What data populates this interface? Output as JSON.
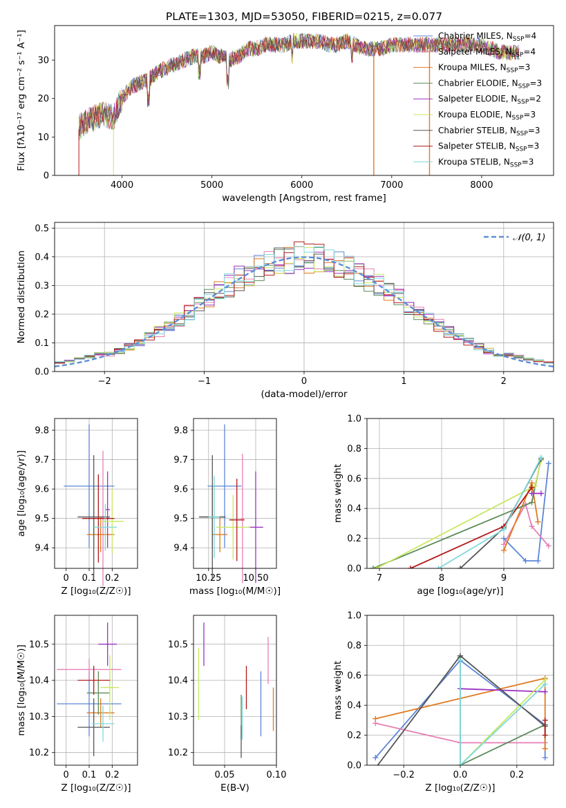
{
  "figure": {
    "title": "PLATE=1303, MJD=53050, FIBERID=0215, z=0.077"
  },
  "colors": {
    "chabrier_miles": "#5b86d6",
    "salpeter_miles": "#e67fb4",
    "kroupa_miles": "#e07a20",
    "chabrier_elodie": "#5a8a5a",
    "salpeter_elodie": "#9b30c0",
    "kroupa_elodie": "#c8e860",
    "chabrier_stelib": "#555555",
    "salpeter_stelib": "#b01818",
    "kroupa_stelib": "#80d8dc",
    "gauss": "#5b8fd6"
  },
  "chart_data": [
    {
      "id": "spectrum",
      "type": "line",
      "xlabel": "wavelength [Angstrom, rest frame]",
      "ylabel": "Flux [fλ10⁻¹⁷ erg cm⁻² s⁻¹ A⁻¹]",
      "xlim": [
        3250,
        8800
      ],
      "ylim": [
        0,
        39
      ],
      "xticks": [
        4000,
        5000,
        6000,
        7000,
        8000
      ],
      "yticks": [
        0,
        10,
        20,
        30
      ],
      "grid": false,
      "legend_position": "right",
      "continuum": {
        "x": [
          3500,
          3600,
          3700,
          3800,
          3900,
          4000,
          4100,
          4200,
          4300,
          4400,
          4500,
          4600,
          4700,
          4800,
          4900,
          5000,
          5100,
          5200,
          5300,
          5400,
          5500,
          5600,
          5700,
          5800,
          5900,
          6000,
          6100,
          6200,
          6300,
          6400,
          6500,
          6600,
          6700,
          6800,
          6900,
          7000,
          7100,
          7200,
          7300,
          7400,
          7500,
          7600,
          7700,
          7800,
          7900,
          8000,
          8100,
          8200,
          8300,
          8400
        ],
        "y": [
          12,
          14,
          15,
          16,
          15,
          20,
          23,
          24,
          25,
          27,
          28,
          29,
          30,
          31,
          31,
          32,
          31,
          30,
          31,
          33,
          33,
          34,
          34,
          34,
          35,
          35,
          35,
          35,
          34,
          34,
          35,
          34,
          33,
          33,
          33,
          34,
          34,
          34,
          34,
          34,
          34,
          34,
          34,
          34,
          34,
          34,
          33,
          32,
          32,
          32
        ]
      },
      "series": [
        {
          "name": "Chabrier MILES, N_SSP=4",
          "color_key": "chabrier_miles"
        },
        {
          "name": "Salpeter MILES, N_SSP=4",
          "color_key": "salpeter_miles"
        },
        {
          "name": "Kroupa MILES, N_SSP=3",
          "color_key": "kroupa_miles"
        },
        {
          "name": "Chabrier ELODIE, N_SSP=3",
          "color_key": "chabrier_elodie"
        },
        {
          "name": "Salpeter ELODIE, N_SSP=2",
          "color_key": "salpeter_elodie"
        },
        {
          "name": "Kroupa ELODIE, N_SSP=3",
          "color_key": "kroupa_elodie"
        },
        {
          "name": "Chabrier STELIB, N_SSP=3",
          "color_key": "chabrier_stelib"
        },
        {
          "name": "Salpeter STELIB, N_SSP=3",
          "color_key": "salpeter_stelib"
        },
        {
          "name": "Kroupa STELIB, N_SSP=3",
          "color_key": "kroupa_stelib"
        }
      ]
    },
    {
      "id": "residuals",
      "type": "histogram",
      "xlabel": "(data-model)/error",
      "ylabel": "Normed distribution",
      "xlim": [
        -2.5,
        2.5
      ],
      "ylim": [
        0,
        0.52
      ],
      "xticks": [
        -2,
        -1,
        0,
        1,
        2
      ],
      "xtick_labels": [
        "−2",
        "−1",
        "0",
        "1",
        "2"
      ],
      "yticks": [
        0.0,
        0.1,
        0.2,
        0.3,
        0.4,
        0.5
      ],
      "ytick_labels": [
        "0.0",
        "0.1",
        "0.2",
        "0.3",
        "0.4",
        "0.5"
      ],
      "grid": true,
      "legend_position": "top-right",
      "legend_label": "𝒩(0, 1)",
      "bin_width": 0.1
    },
    {
      "id": "age_vs_Z",
      "type": "errorbar",
      "xlabel": "Z [log₁₀(Z/Z☉)]",
      "ylabel": "age  [log₁₀(age/yr)]",
      "xlim": [
        -0.05,
        0.31
      ],
      "ylim": [
        9.33,
        9.84
      ],
      "xticks": [
        0.0,
        0.1,
        0.2
      ],
      "yticks": [
        9.4,
        9.5,
        9.6,
        9.7,
        9.8
      ],
      "grid": true,
      "points": [
        {
          "key": "chabrier_miles",
          "x": 0.1,
          "xerr": 0.11,
          "y": 9.61,
          "yerr": 0.21
        },
        {
          "key": "salpeter_miles",
          "x": 0.16,
          "xerr": 0.04,
          "y": 9.5,
          "yerr": 0.23
        },
        {
          "key": "kroupa_miles",
          "x": 0.15,
          "xerr": 0.06,
          "y": 9.445,
          "yerr": 0.06
        },
        {
          "key": "chabrier_elodie",
          "x": 0.12,
          "xerr": 0.05,
          "y": 9.5,
          "yerr": 0.1
        },
        {
          "key": "salpeter_elodie",
          "x": 0.18,
          "xerr": 0.01,
          "y": 9.53,
          "yerr": 0.13
        },
        {
          "key": "kroupa_elodie",
          "x": 0.2,
          "xerr": 0.05,
          "y": 9.49,
          "yerr": 0.11
        },
        {
          "key": "chabrier_stelib",
          "x": 0.12,
          "xerr": 0.07,
          "y": 9.505,
          "yerr": 0.21
        },
        {
          "key": "salpeter_stelib",
          "x": 0.14,
          "xerr": 0.07,
          "y": 9.5,
          "yerr": 0.15
        },
        {
          "key": "kroupa_stelib",
          "x": 0.17,
          "xerr": 0.05,
          "y": 9.47,
          "yerr": 0.08
        }
      ]
    },
    {
      "id": "age_vs_mass",
      "type": "errorbar",
      "xlabel": "mass [log₁₀(M/M☉)]",
      "ylabel": "",
      "xlim": [
        10.17,
        10.61
      ],
      "ylim": [
        9.33,
        9.84
      ],
      "xticks": [
        10.25,
        10.5
      ],
      "xtick_labels": [
        "10.25",
        "10.50"
      ],
      "yticks": [
        9.4,
        9.5,
        9.6,
        9.7,
        9.8
      ],
      "grid": true,
      "points": [
        {
          "key": "chabrier_miles",
          "x": 10.335,
          "xerr": 0.09,
          "y": 9.61,
          "yerr": 0.21
        },
        {
          "key": "salpeter_miles",
          "x": 10.43,
          "xerr": 0.01,
          "y": 9.5,
          "yerr": 0.22
        },
        {
          "key": "kroupa_miles",
          "x": 10.31,
          "xerr": 0.04,
          "y": 9.445,
          "yerr": 0.06
        },
        {
          "key": "chabrier_elodie",
          "x": 10.27,
          "xerr": 0.07,
          "y": 9.505,
          "yerr": 0.1
        },
        {
          "key": "salpeter_elodie",
          "x": 10.5,
          "xerr": 0.04,
          "y": 9.47,
          "yerr": 0.19
        },
        {
          "key": "kroupa_elodie",
          "x": 10.38,
          "xerr": 0.09,
          "y": 9.47,
          "yerr": 0.11
        },
        {
          "key": "chabrier_stelib",
          "x": 10.27,
          "xerr": 0.07,
          "y": 9.505,
          "yerr": 0.21
        },
        {
          "key": "salpeter_stelib",
          "x": 10.4,
          "xerr": 0.04,
          "y": 9.495,
          "yerr": 0.14
        },
        {
          "key": "kroupa_stelib",
          "x": 10.28,
          "xerr": 0.03,
          "y": 9.505,
          "yerr": 0.14
        }
      ]
    },
    {
      "id": "weight_vs_age",
      "type": "line",
      "xlabel": "age  [log₁₀(age/yr)]",
      "ylabel": "mass weight",
      "xlim": [
        6.8,
        9.8
      ],
      "ylim": [
        0,
        1
      ],
      "xticks": [
        7,
        8,
        9
      ],
      "yticks": [
        0.0,
        0.2,
        0.4,
        0.6,
        0.8,
        1.0
      ],
      "ytick_labels": [
        "0.0",
        "0.2",
        "0.4",
        "0.6",
        "0.8",
        "1.0"
      ],
      "grid": true,
      "series": [
        {
          "key": "chabrier_miles",
          "x": [
            9.0,
            9.35,
            9.55,
            9.72
          ],
          "y": [
            0.2,
            0.05,
            0.05,
            0.7
          ]
        },
        {
          "key": "salpeter_miles",
          "x": [
            9.0,
            9.35,
            9.45,
            9.72
          ],
          "y": [
            0.16,
            0.43,
            0.28,
            0.15
          ]
        },
        {
          "key": "kroupa_miles",
          "x": [
            9.0,
            9.45,
            9.55
          ],
          "y": [
            0.12,
            0.57,
            0.31
          ]
        },
        {
          "key": "chabrier_elodie",
          "x": [
            6.9,
            9.45,
            9.6
          ],
          "y": [
            0.0,
            0.44,
            0.73
          ]
        },
        {
          "key": "salpeter_elodie",
          "x": [
            9.45,
            9.6
          ],
          "y": [
            0.5,
            0.5
          ]
        },
        {
          "key": "kroupa_elodie",
          "x": [
            6.95,
            9.5,
            9.6
          ],
          "y": [
            0.0,
            0.55,
            0.72
          ]
        },
        {
          "key": "chabrier_stelib",
          "x": [
            8.3,
            9.0,
            9.6
          ],
          "y": [
            0.0,
            0.27,
            0.73
          ]
        },
        {
          "key": "salpeter_stelib",
          "x": [
            7.5,
            9.0,
            9.45
          ],
          "y": [
            0.0,
            0.28,
            0.54
          ]
        },
        {
          "key": "kroupa_stelib",
          "x": [
            7.95,
            9.0,
            9.6
          ],
          "y": [
            0.0,
            0.26,
            0.74
          ]
        }
      ]
    },
    {
      "id": "mass_vs_Z",
      "type": "errorbar",
      "xlabel": "Z [log₁₀(Z/Z☉)]",
      "ylabel": "mass [log₁₀(M/M☉)]",
      "xlim": [
        -0.05,
        0.31
      ],
      "ylim": [
        10.165,
        10.58
      ],
      "xticks": [
        0.0,
        0.1,
        0.2
      ],
      "yticks": [
        10.2,
        10.3,
        10.4,
        10.5
      ],
      "grid": true,
      "points": [
        {
          "key": "chabrier_miles",
          "x": 0.1,
          "xerr": 0.14,
          "y": 10.335,
          "yerr": 0.09
        },
        {
          "key": "salpeter_miles",
          "x": 0.1,
          "xerr": 0.14,
          "y": 10.43,
          "yerr": 0.03
        },
        {
          "key": "kroupa_miles",
          "x": 0.15,
          "xerr": 0.06,
          "y": 10.31,
          "yerr": 0.04
        },
        {
          "key": "chabrier_elodie",
          "x": 0.14,
          "xerr": 0.05,
          "y": 10.365,
          "yerr": 0.06
        },
        {
          "key": "salpeter_elodie",
          "x": 0.18,
          "xerr": 0.04,
          "y": 10.5,
          "yerr": 0.06
        },
        {
          "key": "kroupa_elodie",
          "x": 0.19,
          "xerr": 0.04,
          "y": 10.38,
          "yerr": 0.09
        },
        {
          "key": "chabrier_stelib",
          "x": 0.12,
          "xerr": 0.07,
          "y": 10.27,
          "yerr": 0.08
        },
        {
          "key": "salpeter_stelib",
          "x": 0.12,
          "xerr": 0.07,
          "y": 10.4,
          "yerr": 0.04
        },
        {
          "key": "kroupa_stelib",
          "x": 0.16,
          "xerr": 0.05,
          "y": 10.28,
          "yerr": 0.05
        }
      ]
    },
    {
      "id": "mass_vs_ebv",
      "type": "errorbar",
      "xlabel": "E(B-V)",
      "ylabel": "",
      "xlim": [
        0.02,
        0.1
      ],
      "ylim": [
        10.165,
        10.58
      ],
      "xticks": [
        0.05,
        0.1
      ],
      "xtick_labels": [
        "0.05",
        "0.10"
      ],
      "yticks": [
        10.2,
        10.3,
        10.4,
        10.5
      ],
      "grid": true,
      "points": [
        {
          "key": "chabrier_miles",
          "x": 0.085,
          "yerr": 0.09,
          "y": 10.335
        },
        {
          "key": "salpeter_miles",
          "x": 0.092,
          "yerr": 0.065,
          "y": 10.455
        },
        {
          "key": "kroupa_miles",
          "x": 0.097,
          "yerr": 0.06,
          "y": 10.32
        },
        {
          "key": "chabrier_elodie",
          "x": 0.066,
          "yerr": 0.06,
          "y": 10.3
        },
        {
          "key": "salpeter_elodie",
          "x": 0.03,
          "yerr": 0.06,
          "y": 10.5
        },
        {
          "key": "kroupa_elodie",
          "x": 0.025,
          "yerr": 0.1,
          "y": 10.39
        },
        {
          "key": "chabrier_stelib",
          "x": 0.066,
          "yerr": 0.045,
          "y": 10.23
        },
        {
          "key": "salpeter_stelib",
          "x": 0.071,
          "yerr": 0.06,
          "y": 10.38
        },
        {
          "key": "kroupa_stelib",
          "x": 0.067,
          "yerr": 0.06,
          "y": 10.295
        }
      ]
    },
    {
      "id": "weight_vs_Z",
      "type": "line",
      "xlabel": "Z [log₁₀(Z/Z☉)]",
      "ylabel": "mass weight",
      "xlim": [
        -0.33,
        0.33
      ],
      "ylim": [
        0,
        1
      ],
      "xticks": [
        -0.2,
        0.0,
        0.2
      ],
      "xtick_labels": [
        "−0.2",
        "0.0",
        "0.2"
      ],
      "yticks": [
        0.0,
        0.2,
        0.4,
        0.6,
        0.8,
        1.0
      ],
      "ytick_labels": [
        "0.0",
        "0.2",
        "0.4",
        "0.6",
        "0.8",
        "1.0"
      ],
      "grid": true,
      "series": [
        {
          "key": "chabrier_miles",
          "x": [
            -0.3,
            0.0,
            0.3,
            0.3
          ],
          "y": [
            0.05,
            0.7,
            0.27,
            0.05
          ]
        },
        {
          "key": "salpeter_miles",
          "x": [
            -0.3,
            0.0,
            0.3
          ],
          "y": [
            0.28,
            0.15,
            0.15
          ]
        },
        {
          "key": "kroupa_miles",
          "x": [
            -0.3,
            0.3,
            0.3
          ],
          "y": [
            0.31,
            0.58,
            0.11
          ]
        },
        {
          "key": "chabrier_elodie",
          "x": [
            0.0,
            0.0,
            0.3
          ],
          "y": [
            0.72,
            0.0,
            0.27
          ]
        },
        {
          "key": "salpeter_elodie",
          "x": [
            0.0,
            0.3
          ],
          "y": [
            0.51,
            0.49
          ]
        },
        {
          "key": "kroupa_elodie",
          "x": [
            0.0,
            0.3
          ],
          "y": [
            0.0,
            0.57
          ]
        },
        {
          "key": "chabrier_stelib",
          "x": [
            -0.3,
            0.0,
            0.3
          ],
          "y": [
            -0.02,
            0.73,
            0.26
          ]
        },
        {
          "key": "salpeter_stelib",
          "x": [
            0.3,
            0.3
          ],
          "y": [
            0.2,
            0.3
          ]
        },
        {
          "key": "kroupa_stelib",
          "x": [
            0.0,
            0.0,
            0.3
          ],
          "y": [
            0.7,
            0.0,
            0.54
          ]
        }
      ]
    }
  ]
}
